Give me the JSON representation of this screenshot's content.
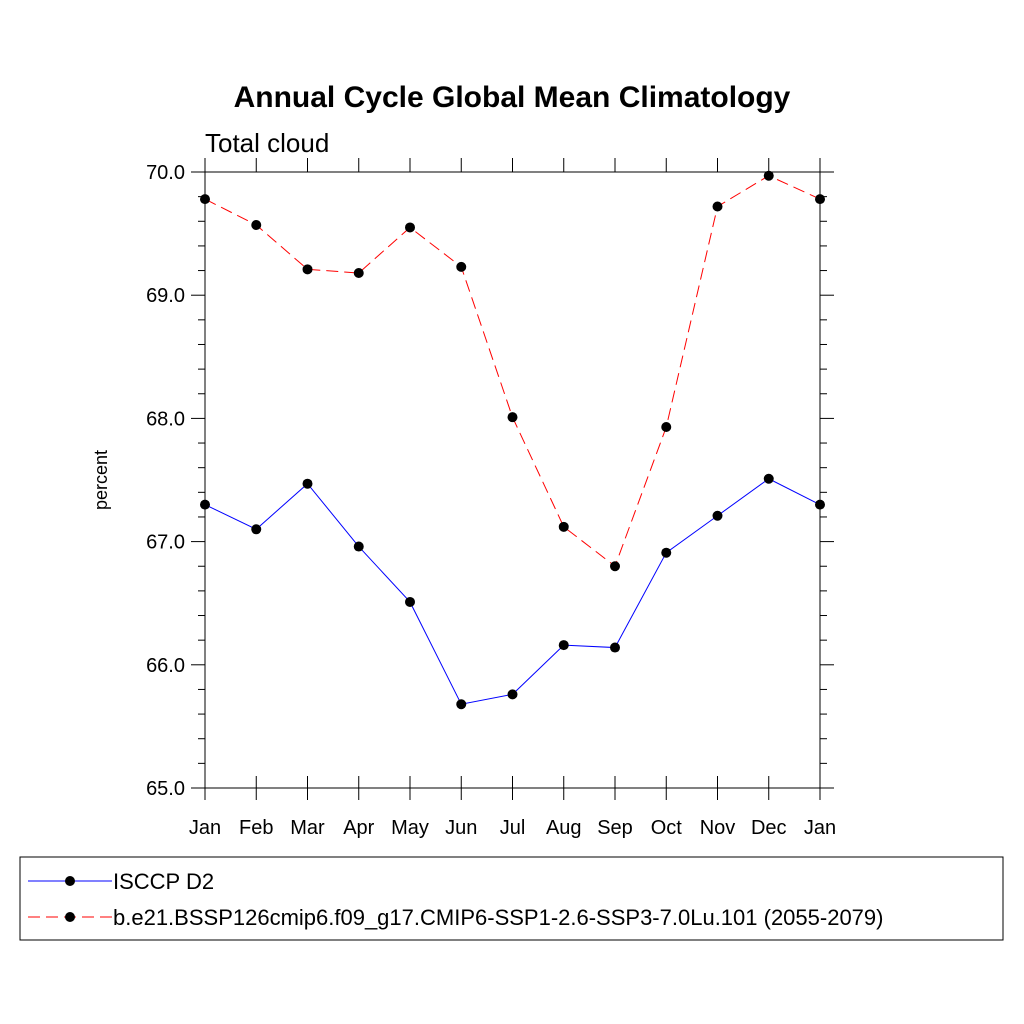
{
  "chart_data": {
    "type": "line",
    "title": "Annual Cycle Global Mean Climatology",
    "subtitle": "Total cloud",
    "xlabel": "",
    "ylabel": "percent",
    "categories": [
      "Jan",
      "Feb",
      "Mar",
      "Apr",
      "May",
      "Jun",
      "Jul",
      "Aug",
      "Sep",
      "Oct",
      "Nov",
      "Dec",
      "Jan"
    ],
    "ylim": [
      65.0,
      70.0
    ],
    "yticks": [
      "65.0",
      "66.0",
      "67.0",
      "68.0",
      "69.0",
      "70.0"
    ],
    "grid": false,
    "legend_position": "bottom",
    "series": [
      {
        "name": "ISCCP D2",
        "color": "#0000ff",
        "line_style": "solid",
        "marker": "filled-circle",
        "values": [
          67.3,
          67.1,
          67.47,
          66.96,
          66.51,
          65.68,
          65.76,
          66.16,
          66.14,
          66.91,
          67.21,
          67.51,
          67.3
        ]
      },
      {
        "name": "b.e21.BSSP126cmip6.f09_g17.CMIP6-SSP1-2.6-SSP3-7.0Lu.101 (2055-2079)",
        "color": "#ff0000",
        "line_style": "dashed",
        "marker": "filled-circle",
        "values": [
          69.78,
          69.57,
          69.21,
          69.18,
          69.55,
          69.23,
          68.01,
          67.12,
          66.8,
          67.93,
          69.72,
          69.97,
          69.78
        ]
      }
    ]
  }
}
